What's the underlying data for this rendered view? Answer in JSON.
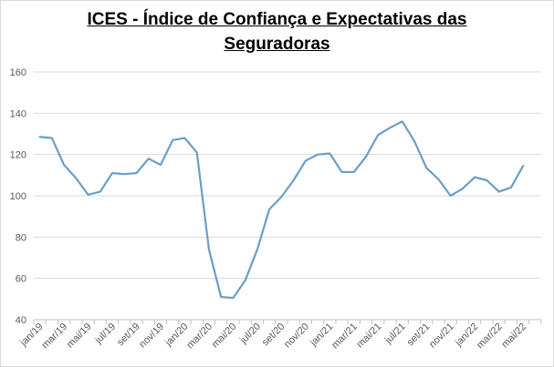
{
  "chart_data": {
    "type": "line",
    "title_lines": [
      "ICES - Índice de Confiança e Expectativas das",
      "Seguradoras"
    ],
    "xlabel": "",
    "ylabel": "",
    "ylim": [
      40,
      160
    ],
    "yticks": [
      40,
      60,
      80,
      100,
      120,
      140,
      160
    ],
    "grid": true,
    "legend": "none",
    "x": [
      "jan/19",
      "fev/19",
      "mar/19",
      "abr/19",
      "mai/19",
      "jun/19",
      "jul/19",
      "ago/19",
      "set/19",
      "out/19",
      "nov/19",
      "dez/19",
      "jan/20",
      "fev/20",
      "mar/20",
      "abr/20",
      "mai/20",
      "jun/20",
      "jul/20",
      "ago/20",
      "set/20",
      "out/20",
      "nov/20",
      "dez/20",
      "jan/21",
      "fev/21",
      "mar/21",
      "abr/21",
      "mai/21",
      "jun/21",
      "jul/21",
      "ago/21",
      "set/21",
      "out/21",
      "nov/21",
      "dez/21",
      "jan/22",
      "fev/22",
      "mar/22",
      "abr/22",
      "mai/22",
      "jun/22"
    ],
    "xtick_labels": [
      "jan/19",
      "mar/19",
      "mai/19",
      "jul/19",
      "set/19",
      "nov/19",
      "jan/20",
      "mar/20",
      "mai/20",
      "jul/20",
      "set/20",
      "nov/20",
      "jan/21",
      "mar/21",
      "mai/21",
      "jul/21",
      "set/21",
      "nov/21",
      "jan/22",
      "mar/22",
      "mai/22"
    ],
    "series": [
      {
        "color": "#6a9ec7",
        "values": [
          128.5,
          128,
          115,
          108.5,
          100.5,
          102,
          111,
          110.5,
          111,
          118,
          115,
          127,
          128,
          121,
          74,
          51,
          50.5,
          59,
          74,
          93.5,
          99.5,
          107.5,
          117,
          120,
          120.5,
          111.5,
          111.5,
          119,
          129.5,
          133,
          136,
          126.5,
          113.5,
          108,
          100,
          103.5,
          109,
          107.5,
          102,
          104,
          114.5,
          null
        ]
      }
    ]
  },
  "colors": {
    "gridline": "#d9d9d9",
    "axis": "#bfbfbf"
  }
}
